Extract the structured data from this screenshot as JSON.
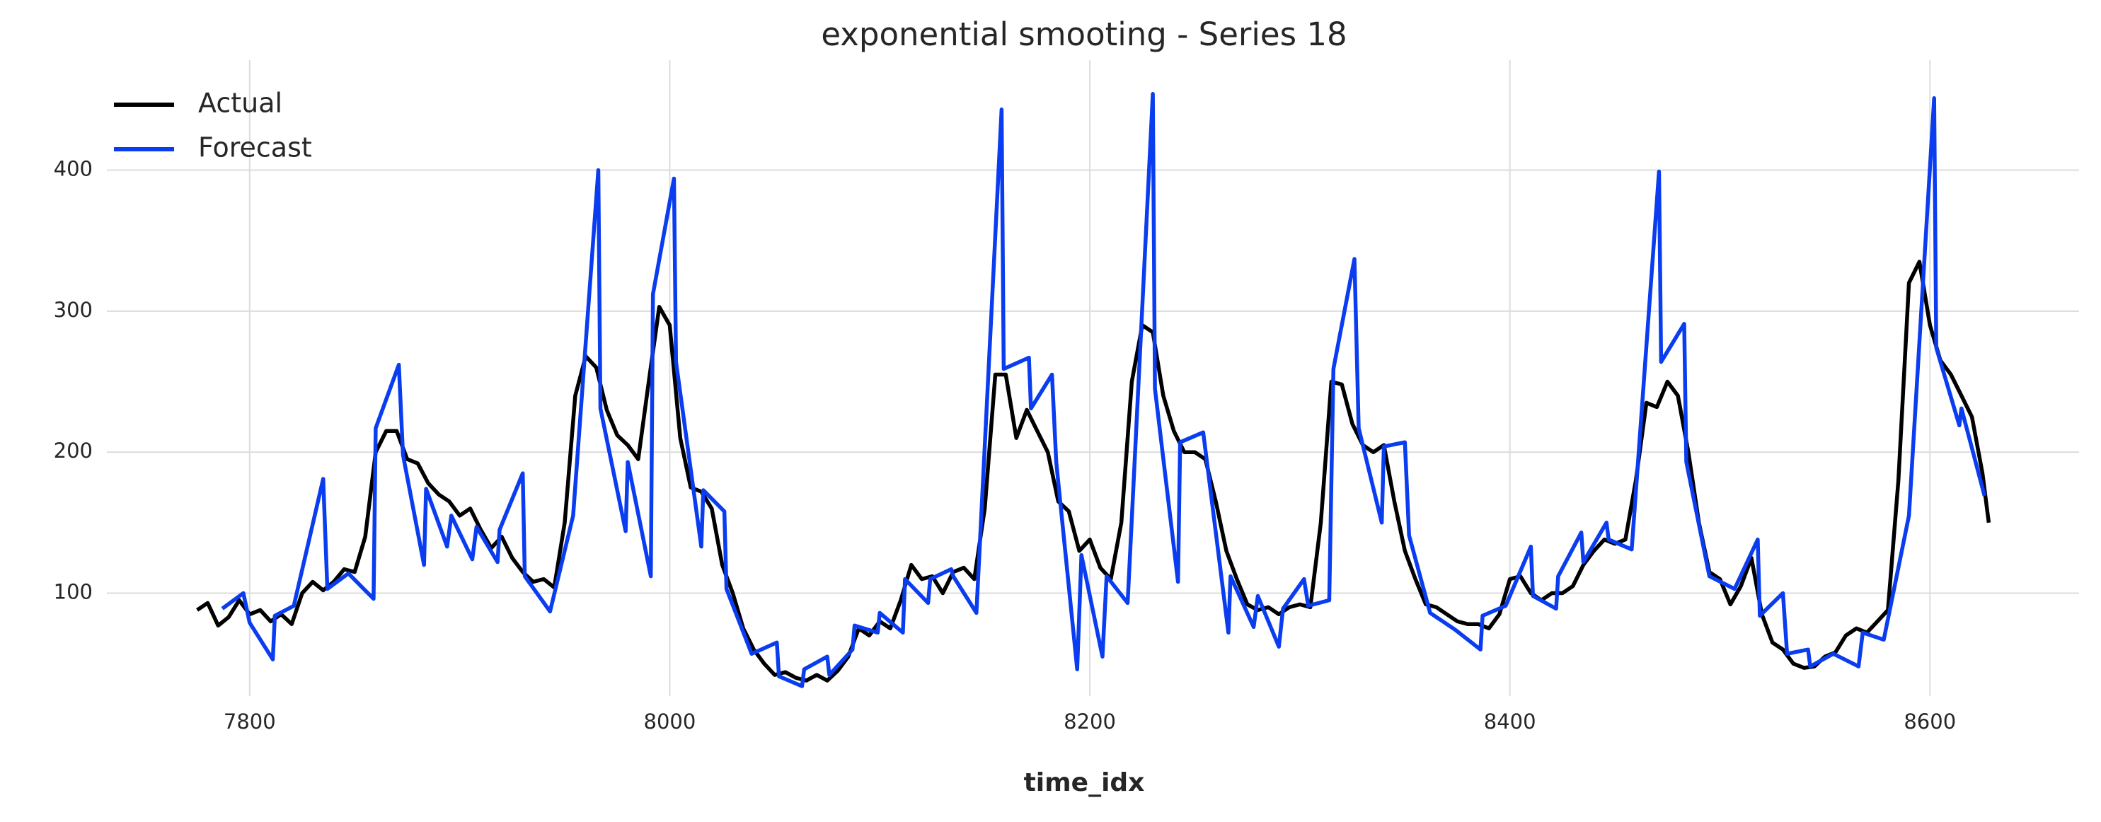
{
  "chart_data": {
    "type": "line",
    "title": "exponential smooting - Series 18",
    "xlabel": "time_idx",
    "xlim": [
      7732,
      8671
    ],
    "ylim": [
      27,
      478
    ],
    "xticks": [
      7800,
      8000,
      8200,
      8400,
      8600
    ],
    "yticks": [
      100,
      200,
      300,
      400
    ],
    "grid": true,
    "legend": "upper left",
    "series": [
      {
        "name": "Actual",
        "color": "#000000",
        "x": [
          7775,
          7780,
          7785,
          7790,
          7795,
          7800,
          7805,
          7810,
          7815,
          7820,
          7825,
          7830,
          7835,
          7840,
          7845,
          7850,
          7855,
          7860,
          7865,
          7870,
          7875,
          7880,
          7885,
          7890,
          7895,
          7900,
          7905,
          7910,
          7915,
          7920,
          7925,
          7930,
          7935,
          7940,
          7945,
          7950,
          7955,
          7960,
          7965,
          7970,
          7975,
          7980,
          7985,
          7990,
          7995,
          8000,
          8005,
          8010,
          8015,
          8020,
          8025,
          8030,
          8035,
          8040,
          8045,
          8050,
          8055,
          8060,
          8065,
          8070,
          8075,
          8080,
          8085,
          8090,
          8095,
          8100,
          8105,
          8110,
          8115,
          8120,
          8125,
          8130,
          8135,
          8140,
          8145,
          8150,
          8155,
          8160,
          8165,
          8170,
          8175,
          8180,
          8185,
          8190,
          8195,
          8200,
          8205,
          8210,
          8215,
          8220,
          8225,
          8230,
          8235,
          8240,
          8245,
          8250,
          8255,
          8260,
          8265,
          8270,
          8275,
          8280,
          8285,
          8290,
          8295,
          8300,
          8305,
          8310,
          8315,
          8320,
          8325,
          8330,
          8335,
          8340,
          8345,
          8350,
          8355,
          8360,
          8365,
          8370,
          8375,
          8380,
          8385,
          8390,
          8395,
          8400,
          8405,
          8410,
          8415,
          8420,
          8425,
          8430,
          8435,
          8440,
          8445,
          8450,
          8455,
          8460,
          8465,
          8470,
          8475,
          8480,
          8485,
          8490,
          8495,
          8500,
          8505,
          8510,
          8515,
          8520,
          8525,
          8530,
          8535,
          8540,
          8545,
          8550,
          8555,
          8560,
          8565,
          8570,
          8575,
          8580,
          8585,
          8590,
          8595,
          8600,
          8605,
          8610,
          8615,
          8620,
          8625,
          8628
        ],
        "values": [
          88,
          93,
          77,
          83,
          95,
          85,
          88,
          80,
          85,
          78,
          100,
          108,
          102,
          108,
          117,
          115,
          140,
          200,
          215,
          215,
          195,
          192,
          178,
          170,
          165,
          155,
          160,
          145,
          132,
          140,
          125,
          115,
          108,
          110,
          104,
          150,
          240,
          268,
          260,
          230,
          212,
          205,
          195,
          250,
          303,
          290,
          210,
          175,
          172,
          160,
          120,
          100,
          75,
          60,
          50,
          42,
          44,
          40,
          38,
          42,
          38,
          45,
          55,
          75,
          70,
          80,
          75,
          95,
          120,
          110,
          112,
          100,
          115,
          118,
          110,
          160,
          255,
          255,
          210,
          230,
          215,
          200,
          165,
          158,
          130,
          138,
          118,
          110,
          150,
          250,
          290,
          285,
          240,
          215,
          200,
          200,
          195,
          165,
          130,
          110,
          92,
          88,
          90,
          85,
          90,
          92,
          90,
          150,
          250,
          248,
          220,
          205,
          200,
          205,
          165,
          130,
          110,
          92,
          90,
          85,
          80,
          78,
          78,
          75,
          85,
          110,
          112,
          100,
          95,
          100,
          100,
          105,
          120,
          130,
          138,
          135,
          138,
          180,
          235,
          232,
          250,
          240,
          200,
          150,
          115,
          110,
          92,
          105,
          125,
          85,
          65,
          60,
          50,
          47,
          48,
          55,
          58,
          70,
          75,
          72,
          80,
          88,
          180,
          320,
          335,
          290,
          265,
          255,
          240,
          225,
          185,
          150
        ]
      },
      {
        "name": "Forecast",
        "color": "#0a3cf0",
        "x": [
          7787,
          7797,
          7800,
          7811,
          7812,
          7821,
          7835,
          7837,
          7847,
          7859,
          7860,
          7871,
          7873,
          7883,
          7884,
          7894,
          7896,
          7906,
          7908,
          7918,
          7919,
          7930,
          7931,
          7943,
          7954,
          7966,
          7967,
          7979,
          7980,
          7991,
          7992,
          8002,
          8003,
          8015,
          8016,
          8026,
          8027,
          8039,
          8051,
          8052,
          8063,
          8064,
          8075,
          8076,
          8087,
          8088,
          8099,
          8100,
          8111,
          8112,
          8123,
          8124,
          8134,
          8135,
          8146,
          8158,
          8159,
          8171,
          8172,
          8182,
          8184,
          8194,
          8196,
          8206,
          8208,
          8218,
          8230,
          8231,
          8242,
          8243,
          8254,
          8266,
          8267,
          8278,
          8280,
          8290,
          8292,
          8302,
          8304,
          8314,
          8316,
          8326,
          8328,
          8339,
          8340,
          8350,
          8352,
          8362,
          8374,
          8386,
          8387,
          8398,
          8410,
          8411,
          8422,
          8423,
          8434,
          8435,
          8446,
          8447,
          8458,
          8471,
          8472,
          8483,
          8484,
          8495,
          8507,
          8518,
          8519,
          8530,
          8532,
          8542,
          8543,
          8554,
          8566,
          8568,
          8578,
          8590,
          8602,
          8603,
          8614,
          8615,
          8626
        ],
        "values": [
          89,
          100,
          79,
          53,
          84,
          91,
          181,
          103,
          114,
          96,
          217,
          262,
          198,
          120,
          174,
          133,
          155,
          124,
          147,
          122,
          145,
          185,
          112,
          87,
          155,
          400,
          231,
          144,
          193,
          112,
          312,
          394,
          264,
          133,
          173,
          158,
          103,
          57,
          65,
          41,
          34,
          46,
          55,
          42,
          60,
          77,
          72,
          86,
          72,
          110,
          93,
          110,
          117,
          112,
          86,
          443,
          259,
          267,
          231,
          255,
          193,
          46,
          127,
          55,
          112,
          93,
          454,
          245,
          108,
          207,
          214,
          72,
          112,
          76,
          98,
          62,
          89,
          110,
          91,
          95,
          259,
          337,
          217,
          150,
          204,
          207,
          141,
          86,
          74,
          60,
          84,
          91,
          133,
          98,
          89,
          112,
          143,
          122,
          150,
          138,
          131,
          399,
          264,
          291,
          193,
          112,
          103,
          138,
          84,
          100,
          57,
          60,
          48,
          57,
          48,
          72,
          67,
          155,
          451,
          274,
          219,
          231,
          169
        ]
      }
    ]
  }
}
